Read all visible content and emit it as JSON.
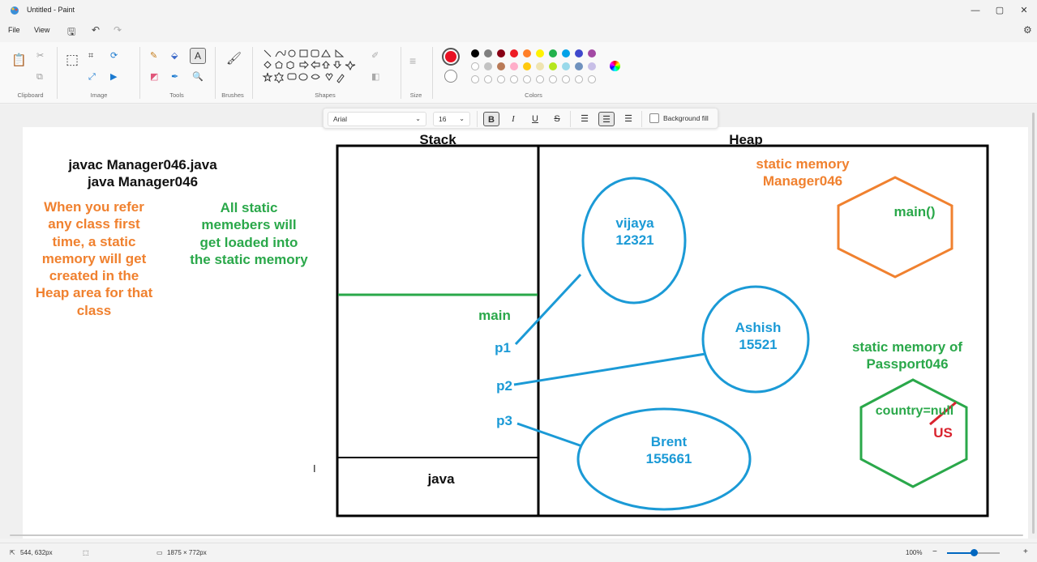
{
  "window": {
    "title": "Untitled - Paint",
    "minimize": "—",
    "maximize": "▢",
    "close": "✕"
  },
  "menu": {
    "file": "File",
    "view": "View"
  },
  "ribbon": {
    "groups": {
      "clipboard": "Clipboard",
      "image": "Image",
      "tools": "Tools",
      "brushes": "Brushes",
      "shapes": "Shapes",
      "size": "Size",
      "colors": "Colors"
    },
    "primary_color": "#e81123",
    "palette_row1": [
      "#000000",
      "#7f7f7f",
      "#880015",
      "#ed1c24",
      "#ff7f27",
      "#fff200",
      "#22b14c",
      "#00a2e8",
      "#3f48cc",
      "#a349a4"
    ],
    "palette_row2": [
      "#ffffff",
      "#c3c3c3",
      "#b97a57",
      "#ffaec9",
      "#ffc90e",
      "#efe4b0",
      "#b5e61d",
      "#99d9ea",
      "#7092be",
      "#c8bfe7"
    ]
  },
  "text_toolbar": {
    "font": "Arial",
    "size": "16",
    "bold": "B",
    "italic": "I",
    "underline": "U",
    "strike": "S",
    "background_fill": "Background fill"
  },
  "canvas": {
    "cmd1": "javac Manager046.java",
    "cmd2": "java Manager046",
    "orange_note": [
      "When you refer",
      "any class first",
      "time, a static",
      "memory will get",
      "created in the",
      "Heap area for that",
      "class"
    ],
    "green_note": [
      "All static",
      "memebers will",
      "get loaded into",
      "the static memory"
    ],
    "stack_label": "Stack",
    "heap_label": "Heap",
    "main_label": "main",
    "java_label": "java",
    "refs": [
      "p1",
      "p2",
      "p3"
    ],
    "objects": [
      {
        "name": "vijaya",
        "id": "12321"
      },
      {
        "name": "Ashish",
        "id": "15521"
      },
      {
        "name": "Brent",
        "id": "155661"
      }
    ],
    "static_mgr": [
      "static memory",
      "Manager046"
    ],
    "main_method": "main()",
    "static_pass": [
      "static memory of",
      "Passport046"
    ],
    "country": "country=null",
    "country_new": "US"
  },
  "status": {
    "cursor": "544, 632px",
    "dimensions": "1875 × 772px",
    "zoom": "100%"
  },
  "colors": {
    "orange": "#f0812f",
    "green": "#2aa84a",
    "blue": "#1b9ad6",
    "red": "#d9232e",
    "accent": "#0067c0"
  }
}
